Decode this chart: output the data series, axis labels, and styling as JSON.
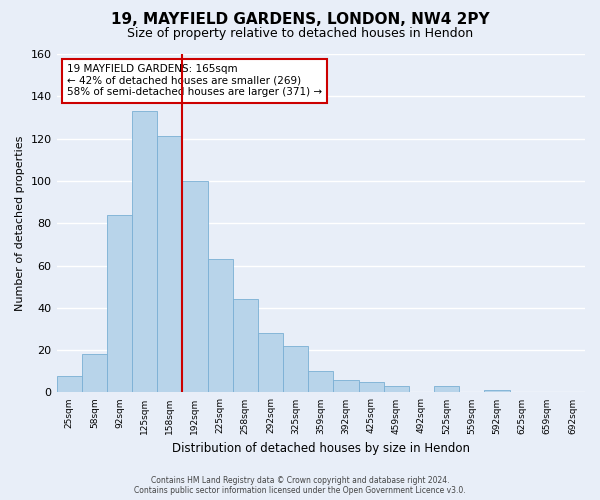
{
  "title": "19, MAYFIELD GARDENS, LONDON, NW4 2PY",
  "subtitle": "Size of property relative to detached houses in Hendon",
  "xlabel": "Distribution of detached houses by size in Hendon",
  "ylabel": "Number of detached properties",
  "bar_values": [
    8,
    18,
    84,
    133,
    121,
    100,
    63,
    44,
    28,
    22,
    10,
    6,
    5,
    3,
    0,
    3,
    0,
    1,
    0,
    0,
    0
  ],
  "all_labels": [
    "25sqm",
    "58sqm",
    "92sqm",
    "125sqm",
    "158sqm",
    "192sqm",
    "225sqm",
    "258sqm",
    "292sqm",
    "325sqm",
    "359sqm",
    "392sqm",
    "425sqm",
    "459sqm",
    "492sqm",
    "525sqm",
    "559sqm",
    "592sqm",
    "625sqm",
    "659sqm",
    "692sqm"
  ],
  "bar_color": "#b8d4ea",
  "bar_edge_color": "#7aafd4",
  "highlight_bar_index": 4,
  "highlight_line_color": "#cc0000",
  "ylim": [
    0,
    160
  ],
  "yticks": [
    0,
    20,
    40,
    60,
    80,
    100,
    120,
    140,
    160
  ],
  "annotation_title": "19 MAYFIELD GARDENS: 165sqm",
  "annotation_line1": "← 42% of detached houses are smaller (269)",
  "annotation_line2": "58% of semi-detached houses are larger (371) →",
  "annotation_box_edge": "#cc0000",
  "footer_line1": "Contains HM Land Registry data © Crown copyright and database right 2024.",
  "footer_line2": "Contains public sector information licensed under the Open Government Licence v3.0.",
  "background_color": "#e8eef8",
  "plot_background": "#e8eef8",
  "grid_color": "#ffffff"
}
